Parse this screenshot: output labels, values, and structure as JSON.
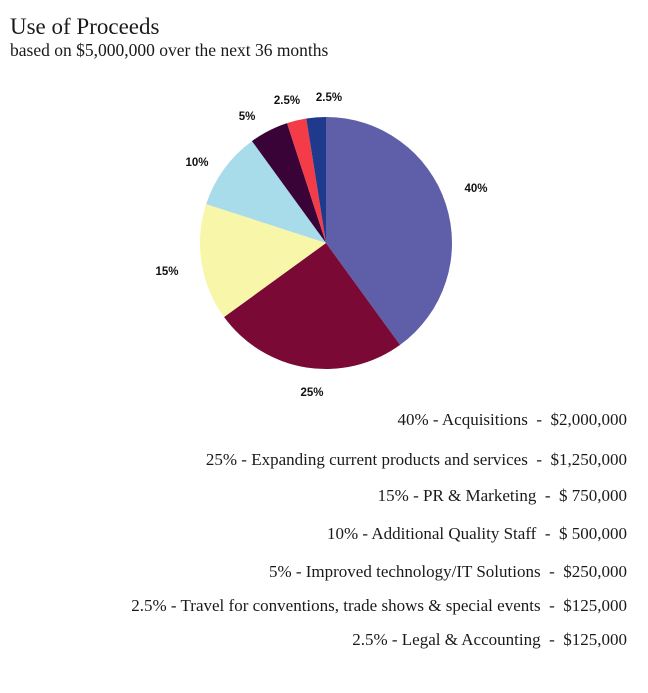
{
  "chart_data": {
    "type": "pie",
    "title": "Use of Proceeds",
    "subtitle": "based on $5,000,000 over the next 36 months",
    "slices": [
      {
        "label": "40%",
        "value": 40,
        "color": "#5f5fa9",
        "legend": "40% - Acquisitions  -  $2,000,000"
      },
      {
        "label": "25%",
        "value": 25,
        "color": "#7a0a35",
        "legend": "25% - Expanding current products and services  -  $1,250,000"
      },
      {
        "label": "15%",
        "value": 15,
        "color": "#f8f6a8",
        "legend": "15% - PR & Marketing  -  $ 750,000"
      },
      {
        "label": "10%",
        "value": 10,
        "color": "#a8dcea",
        "legend": "10% - Additional Quality Staff  -  $ 500,000"
      },
      {
        "label": "5%",
        "value": 5,
        "color": "#3a0337",
        "legend": "5% - Improved technology/IT Solutions  -  $250,000"
      },
      {
        "label": "2.5%",
        "value": 2.5,
        "color": "#f43c48",
        "legend": "2.5% - Travel for conventions, trade shows & special events  -  $125,000"
      },
      {
        "label": "2.5%",
        "value": 2.5,
        "color": "#1f3a8c",
        "legend": "2.5% - Legal & Accounting  -  $125,000"
      }
    ]
  }
}
